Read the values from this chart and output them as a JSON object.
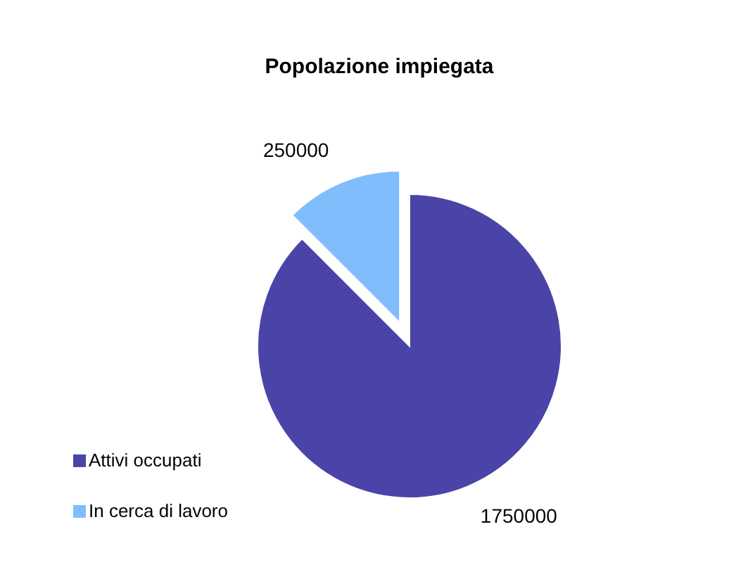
{
  "chart_data": {
    "type": "pie",
    "title": "Popolazione impiegata",
    "categories": [
      "Attivi occupati",
      "In cerca di lavoro"
    ],
    "values": [
      1750000,
      250000
    ],
    "colors": [
      "#4b44a8",
      "#80bdfd"
    ],
    "data_labels": true,
    "legend": "bottom left"
  }
}
